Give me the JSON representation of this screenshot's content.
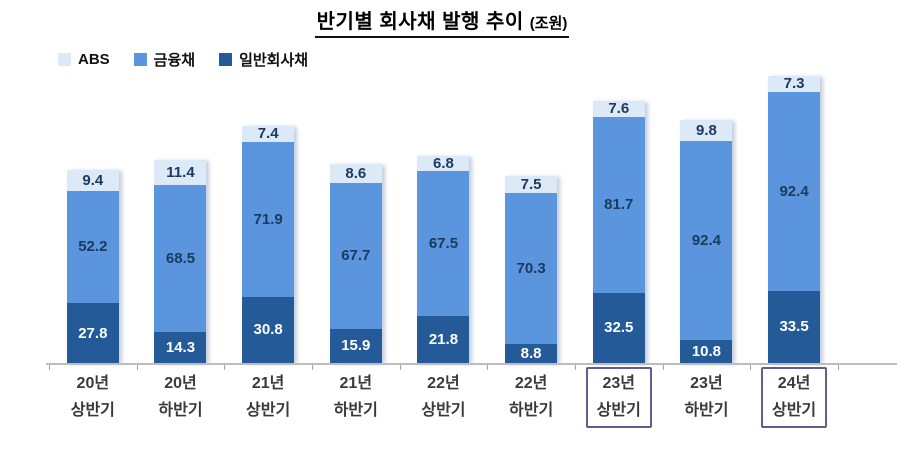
{
  "title": {
    "main": "반기별 회사채 발행 추이",
    "unit": "(조원)"
  },
  "legend": {
    "items": [
      {
        "label": "ABS",
        "color": "#dce9f7"
      },
      {
        "label": "금융채",
        "color": "#5b95dd"
      },
      {
        "label": "일반회사채",
        "color": "#235a97"
      }
    ]
  },
  "colors": {
    "axis_line": "#bdbdbd",
    "tick": "#a8a8a8",
    "highlight_box": "#685a8d",
    "value_text_dark": "#1b3a5f",
    "value_text_light": "#ffffff",
    "axis_label_text": "#3a3a3a"
  },
  "chart_data": {
    "type": "bar",
    "stacked": true,
    "title": "반기별 회사채 발행 추이",
    "unit": "조원",
    "grid": false,
    "legend_position": "top-left",
    "ylim": [
      0,
      140
    ],
    "categories": [
      "20년 상반기",
      "20년 하반기",
      "21년 상반기",
      "21년 하반기",
      "22년 상반기",
      "22년 하반기",
      "23년 상반기",
      "23년 하반기",
      "24년 상반기"
    ],
    "highlighted_category_indexes": [
      6,
      8
    ],
    "series": [
      {
        "key": "general",
        "name": "일반회사채",
        "color": "#235a97",
        "label_color": "#ffffff",
        "values": [
          27.8,
          14.3,
          30.8,
          15.9,
          21.8,
          8.8,
          32.5,
          10.8,
          33.5
        ]
      },
      {
        "key": "financial",
        "name": "금융채",
        "color": "#5b95dd",
        "label_color": "#1b3a5f",
        "values": [
          52.2,
          68.5,
          71.9,
          67.7,
          67.5,
          70.3,
          81.7,
          92.4,
          92.4
        ]
      },
      {
        "key": "abs",
        "name": "ABS",
        "color": "#dce9f7",
        "label_color": "#1b3a5f",
        "values": [
          9.4,
          11.4,
          7.4,
          8.6,
          6.8,
          7.5,
          7.6,
          9.8,
          7.3
        ]
      }
    ],
    "totals": [
      89.4,
      94.2,
      110.1,
      92.2,
      96.1,
      86.6,
      121.8,
      113.0,
      133.2
    ]
  }
}
